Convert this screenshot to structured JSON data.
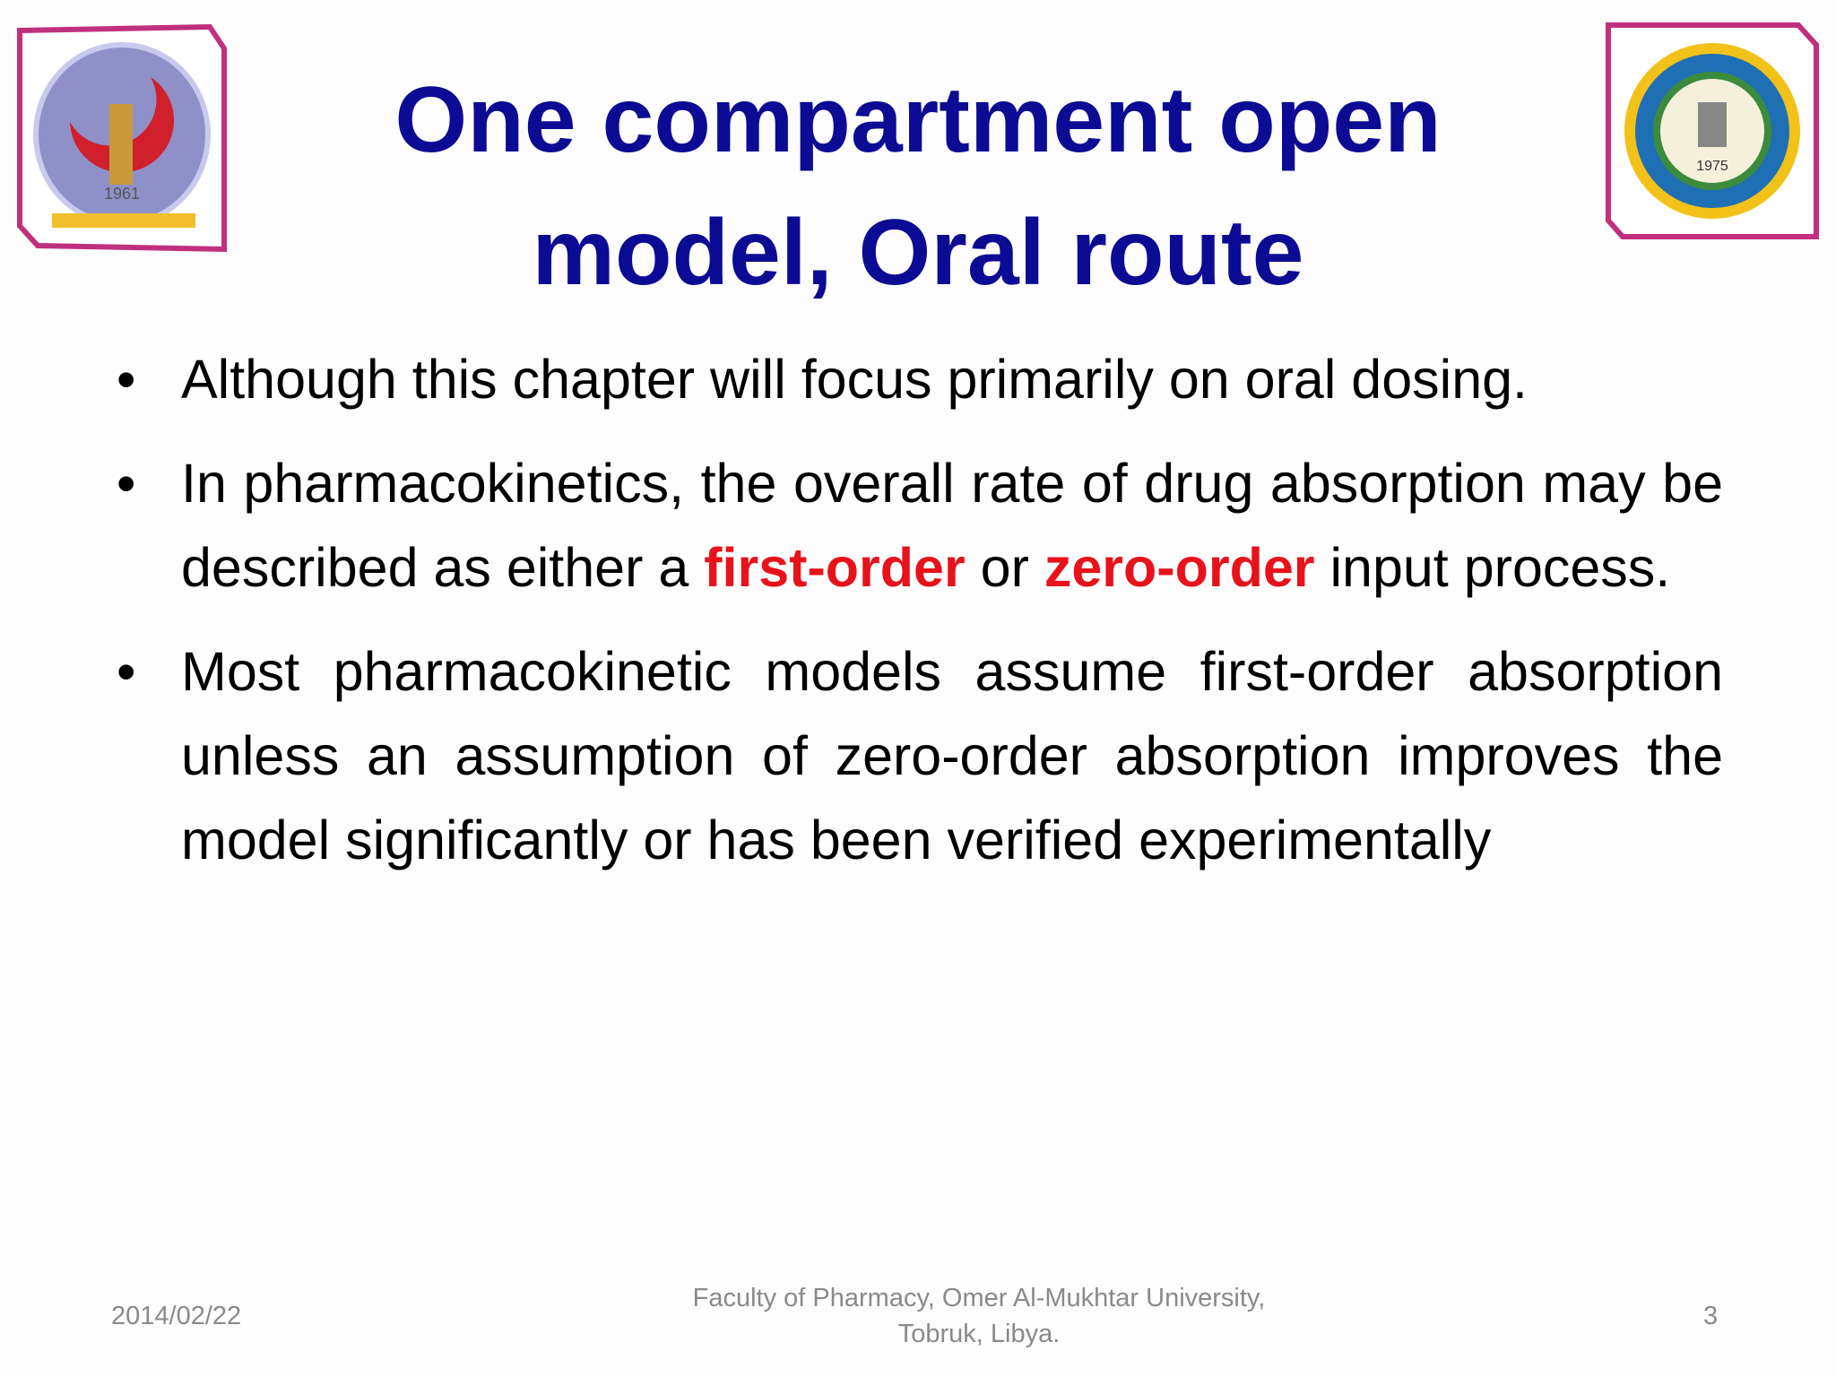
{
  "header": {
    "title": "One compartment open model, Oral route"
  },
  "logos": {
    "left": {
      "year": "1961"
    },
    "right": {
      "year": "1975"
    }
  },
  "bullets": [
    [
      {
        "text": "Although this chapter will focus primarily on oral dosing."
      }
    ],
    [
      {
        "text": "In pharmacokinetics, the overall rate of drug absorption may be described as either a "
      },
      {
        "text": "first-order",
        "color": "#e8121b"
      },
      {
        "text": " or "
      },
      {
        "text": "zero-order",
        "color": "#e8121b"
      },
      {
        "text": " input process."
      }
    ],
    [
      {
        "text": "Most pharmacokinetic models assume first-order absorption unless an assumption of zero-order absorption improves the model significantly or has been verified experimentally"
      }
    ]
  ],
  "footer": {
    "date": "2014/02/22",
    "institution": [
      "Faculty of Pharmacy, Omer Al-Mukhtar University,",
      "Tobruk, Libya."
    ],
    "page": 3
  }
}
